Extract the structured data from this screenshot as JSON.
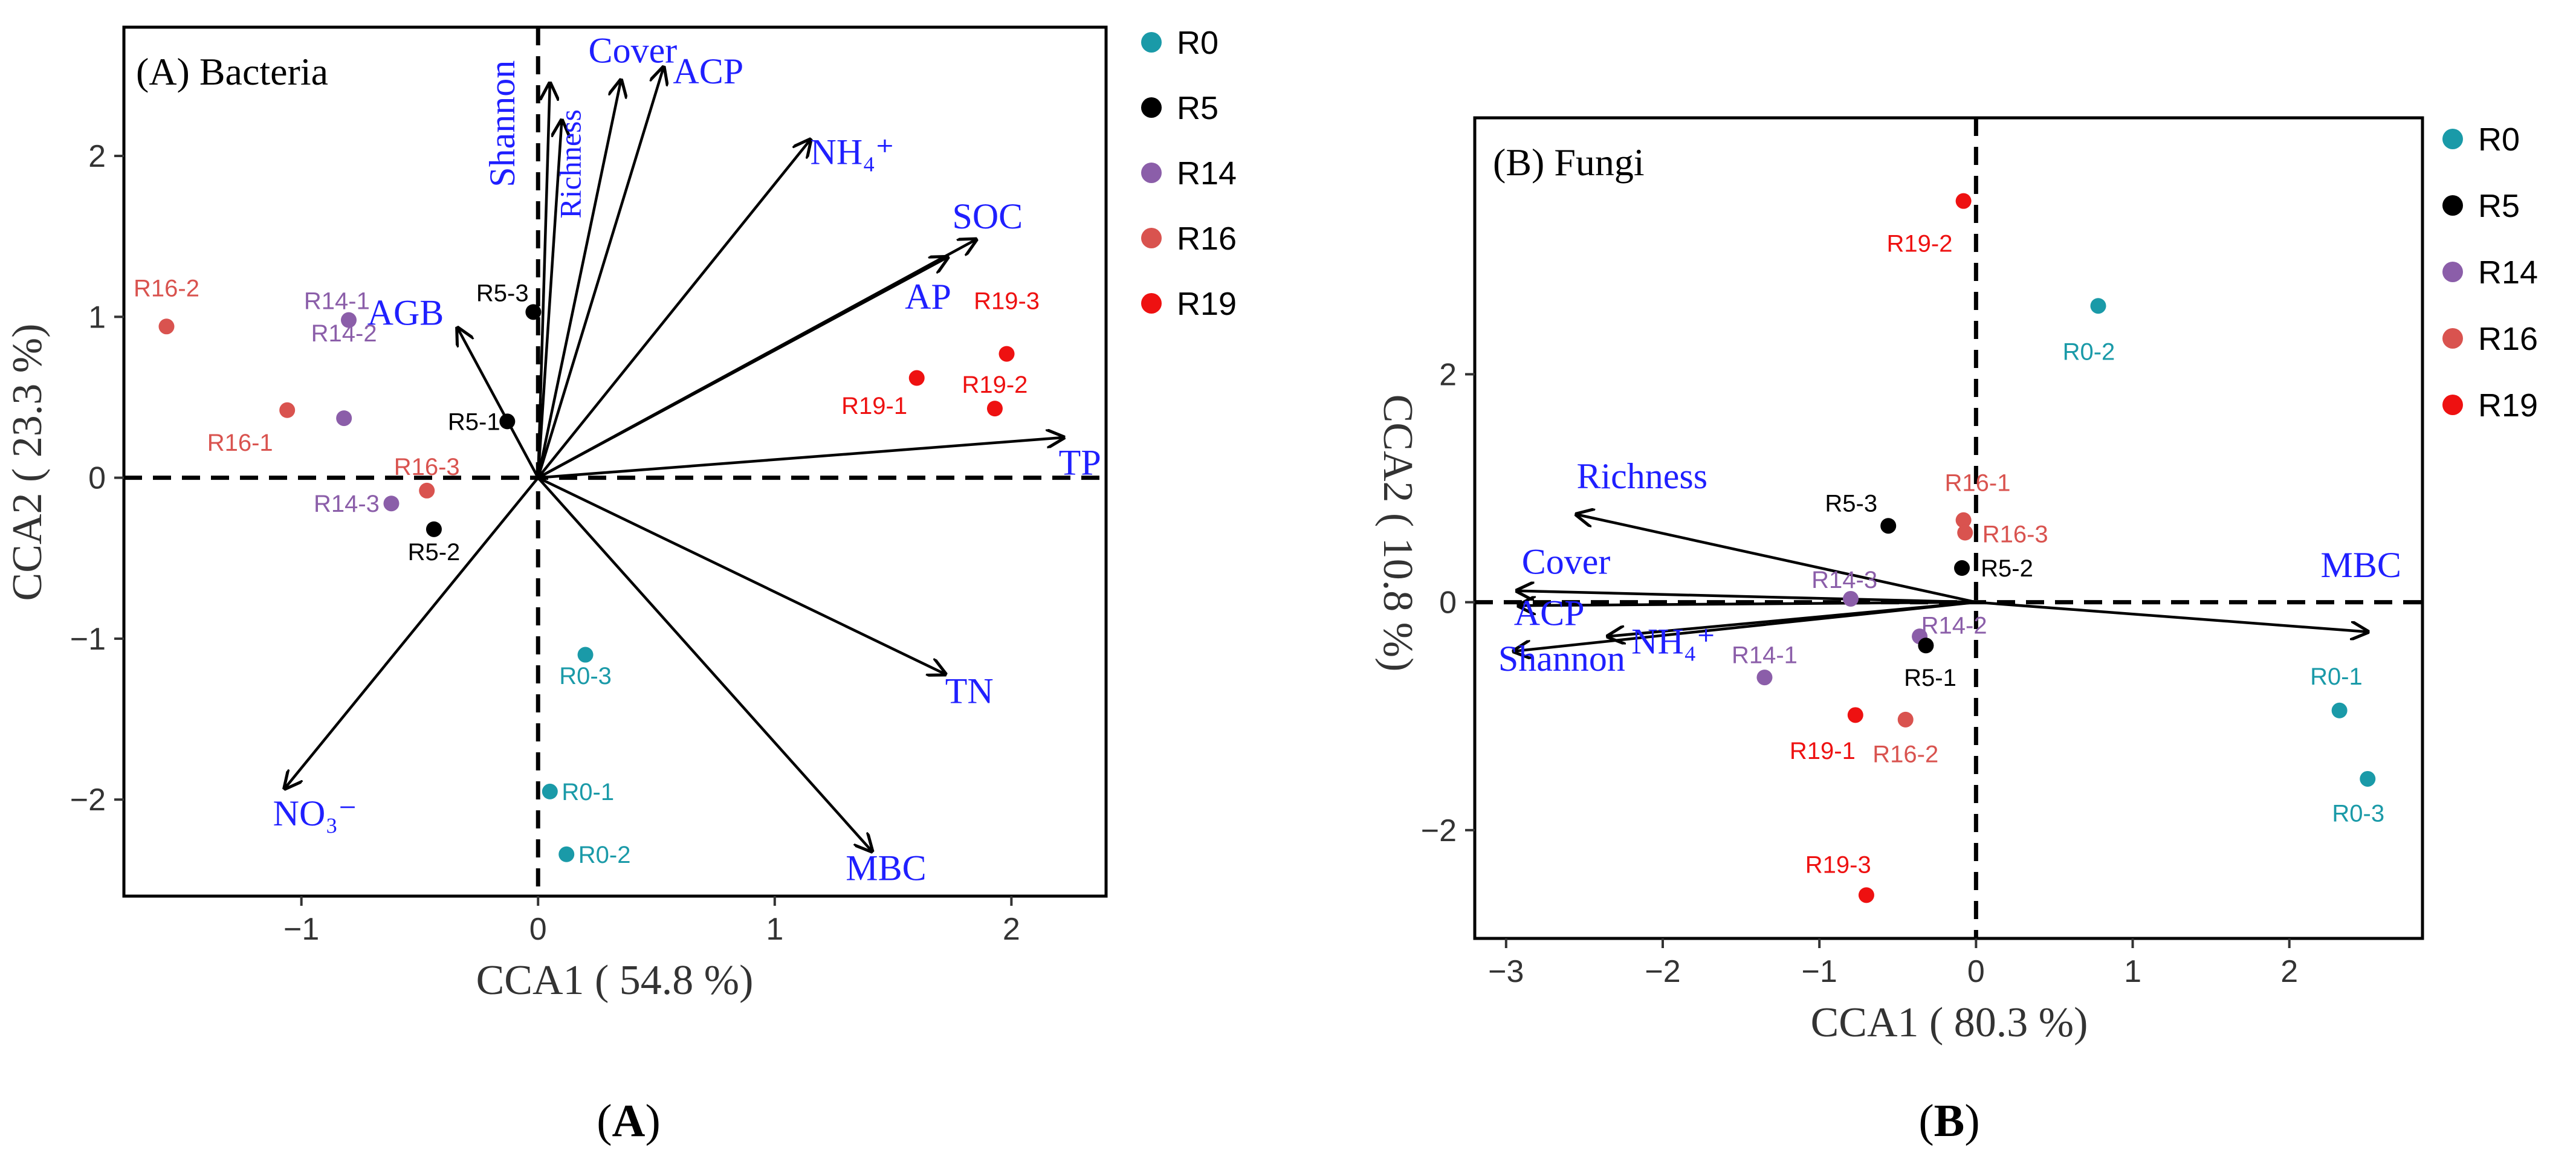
{
  "colors": {
    "arrow": "#000000",
    "var_label": "#1f1fff",
    "dashed": "#000000"
  },
  "chart_data": [
    {
      "type": "scatter",
      "title": "(A) Bacteria",
      "caption_bold": "A",
      "xlabel": "CCA1 ( 54.8 %)",
      "ylabel": "CCA2 ( 23.3 %)",
      "xlim": [
        -1.75,
        2.4
      ],
      "ylim": [
        -2.6,
        2.8
      ],
      "xticks": [
        {
          "value": -1,
          "label": "−1"
        },
        {
          "value": 0,
          "label": "0"
        },
        {
          "value": 1,
          "label": "1"
        },
        {
          "value": 2,
          "label": "2"
        }
      ],
      "yticks": [
        {
          "value": -2,
          "label": "−2"
        },
        {
          "value": -1,
          "label": "−1"
        },
        {
          "value": 0,
          "label": "0"
        },
        {
          "value": 1,
          "label": "1"
        },
        {
          "value": 2,
          "label": "2"
        }
      ],
      "legend": [
        {
          "group": "R0",
          "label": "R0",
          "color": "#1a9aa8"
        },
        {
          "group": "R5",
          "label": "R5",
          "color": "#000000"
        },
        {
          "group": "R14",
          "label": "R14",
          "color": "#8b5ea9"
        },
        {
          "group": "R16",
          "label": "R16",
          "color": "#d9534f"
        },
        {
          "group": "R19",
          "label": "R19",
          "color": "#ee1111"
        }
      ],
      "points": [
        {
          "label": "R16-2",
          "group": "R16",
          "x": -1.57,
          "y": 0.94,
          "lx": -1.57,
          "ly": 1.18,
          "anchor": "middle"
        },
        {
          "label": "R16-1",
          "group": "R16",
          "x": -1.06,
          "y": 0.42,
          "lx": -1.12,
          "ly": 0.22,
          "anchor": "end"
        },
        {
          "label": "R16-3",
          "group": "R16",
          "x": -0.47,
          "y": -0.08,
          "lx": -0.47,
          "ly": 0.07,
          "anchor": "middle"
        },
        {
          "label": "R14-1",
          "group": "R14",
          "x": -0.8,
          "y": 0.98,
          "lx": -0.85,
          "ly": 1.1,
          "anchor": "middle"
        },
        {
          "label": "R14-2",
          "group": "R14",
          "x": -0.82,
          "y": 0.37,
          "lx": -0.82,
          "ly": 0.9,
          "anchor": "middle"
        },
        {
          "label": "R14-3",
          "group": "R14",
          "x": -0.62,
          "y": -0.16,
          "lx": -0.67,
          "ly": -0.16,
          "anchor": "end"
        },
        {
          "label": "R5-3",
          "group": "R5",
          "x": -0.02,
          "y": 1.03,
          "lx": -0.04,
          "ly": 1.15,
          "anchor": "end"
        },
        {
          "label": "R5-1",
          "group": "R5",
          "x": -0.13,
          "y": 0.35,
          "lx": -0.16,
          "ly": 0.35,
          "anchor": "end"
        },
        {
          "label": "R5-2",
          "group": "R5",
          "x": -0.44,
          "y": -0.32,
          "lx": -0.44,
          "ly": -0.46,
          "anchor": "middle"
        },
        {
          "label": "R19-1",
          "group": "R19",
          "x": 1.6,
          "y": 0.62,
          "lx": 1.56,
          "ly": 0.45,
          "anchor": "end"
        },
        {
          "label": "R19-2",
          "group": "R19",
          "x": 1.93,
          "y": 0.43,
          "lx": 1.93,
          "ly": 0.58,
          "anchor": "middle"
        },
        {
          "label": "R19-3",
          "group": "R19",
          "x": 1.98,
          "y": 0.77,
          "lx": 1.98,
          "ly": 1.1,
          "anchor": "middle"
        },
        {
          "label": "R0-3",
          "group": "R0",
          "x": 0.2,
          "y": -1.1,
          "lx": 0.2,
          "ly": -1.23,
          "anchor": "middle"
        },
        {
          "label": "R0-1",
          "group": "R0",
          "x": 0.05,
          "y": -1.95,
          "lx": 0.1,
          "ly": -1.95,
          "anchor": "start"
        },
        {
          "label": "R0-2",
          "group": "R0",
          "x": 0.12,
          "y": -2.34,
          "lx": 0.17,
          "ly": -2.34,
          "anchor": "start"
        }
      ],
      "arrows": [
        {
          "label": "Shannon",
          "x": 0.05,
          "y": 2.45,
          "lx": -0.1,
          "ly": 2.2,
          "rotate": true
        },
        {
          "label": "Richness",
          "x": 0.1,
          "y": 2.22,
          "lx": 0.18,
          "ly": 1.95,
          "rotate": true,
          "small": true
        },
        {
          "label": "Cover",
          "x": 0.35,
          "y": 2.47,
          "lx": 0.4,
          "ly": 2.58,
          "anchor": "middle"
        },
        {
          "label": "ACP",
          "x": 0.53,
          "y": 2.55,
          "lx": 0.57,
          "ly": 2.45,
          "anchor": "start"
        },
        {
          "label": "NH₄⁺",
          "x": 1.15,
          "y": 2.1,
          "lx": 1.15,
          "ly": 1.95,
          "anchor": "start"
        },
        {
          "label": "SOC",
          "x": 1.85,
          "y": 1.48,
          "lx": 1.75,
          "ly": 1.55,
          "anchor": "start"
        },
        {
          "label": "AP",
          "x": 1.73,
          "y": 1.37,
          "lx": 1.55,
          "ly": 1.05,
          "anchor": "start"
        },
        {
          "label": "TP",
          "x": 2.22,
          "y": 0.25,
          "lx": 2.2,
          "ly": 0.02,
          "anchor": "start"
        },
        {
          "label": "TN",
          "x": 1.72,
          "y": -1.22,
          "lx": 1.72,
          "ly": -1.4,
          "anchor": "start"
        },
        {
          "label": "MBC",
          "x": 1.41,
          "y": -2.32,
          "lx": 1.3,
          "ly": -2.5,
          "anchor": "start"
        },
        {
          "label": "NO₃⁻",
          "x": -1.07,
          "y": -1.93,
          "lx": -1.12,
          "ly": -2.16,
          "anchor": "start"
        },
        {
          "label": "AGB",
          "x": -0.34,
          "y": 0.93,
          "lx": -0.56,
          "ly": 0.95,
          "anchor": "middle"
        }
      ]
    },
    {
      "type": "scatter",
      "title": "(B) Fungi",
      "caption_bold": "B",
      "xlabel": "CCA1 ( 80.3 %)",
      "ylabel": "CCA2 ( 10.8 %)",
      "xlim": [
        -3.2,
        2.85
      ],
      "ylim": [
        -2.95,
        4.25
      ],
      "xticks": [
        {
          "value": -3,
          "label": "−3"
        },
        {
          "value": -2,
          "label": "−2"
        },
        {
          "value": -1,
          "label": "−1"
        },
        {
          "value": 0,
          "label": "0"
        },
        {
          "value": 1,
          "label": "1"
        },
        {
          "value": 2,
          "label": "2"
        }
      ],
      "yticks": [
        {
          "value": -2,
          "label": "−2"
        },
        {
          "value": 0,
          "label": "0"
        },
        {
          "value": 2,
          "label": "2"
        }
      ],
      "legend": [
        {
          "group": "R0",
          "label": "R0",
          "color": "#1a9aa8"
        },
        {
          "group": "R5",
          "label": "R5",
          "color": "#000000"
        },
        {
          "group": "R14",
          "label": "R14",
          "color": "#8b5ea9"
        },
        {
          "group": "R16",
          "label": "R16",
          "color": "#d9534f"
        },
        {
          "group": "R19",
          "label": "R19",
          "color": "#ee1111"
        }
      ],
      "points": [
        {
          "label": "R19-2",
          "group": "R19",
          "x": -0.08,
          "y": 3.52,
          "lx": -0.15,
          "ly": 3.15,
          "anchor": "end"
        },
        {
          "label": "R0-2",
          "group": "R0",
          "x": 0.78,
          "y": 2.6,
          "lx": 0.72,
          "ly": 2.2,
          "anchor": "middle"
        },
        {
          "label": "R5-3",
          "group": "R5",
          "x": -0.56,
          "y": 0.67,
          "lx": -0.63,
          "ly": 0.87,
          "anchor": "end"
        },
        {
          "label": "R16-1",
          "group": "R16",
          "x": -0.08,
          "y": 0.72,
          "lx": -0.2,
          "ly": 1.05,
          "anchor": "start"
        },
        {
          "label": "R16-3",
          "group": "R16",
          "x": -0.07,
          "y": 0.61,
          "lx": 0.04,
          "ly": 0.6,
          "anchor": "start"
        },
        {
          "label": "R5-2",
          "group": "R5",
          "x": -0.09,
          "y": 0.3,
          "lx": 0.03,
          "ly": 0.3,
          "anchor": "start"
        },
        {
          "label": "R14-3",
          "group": "R14",
          "x": -0.8,
          "y": 0.03,
          "lx": -0.84,
          "ly": 0.2,
          "anchor": "middle"
        },
        {
          "label": "R14-2",
          "group": "R14",
          "x": -0.36,
          "y": -0.3,
          "lx": -0.35,
          "ly": -0.2,
          "anchor": "start"
        },
        {
          "label": "R5-1",
          "group": "R5",
          "x": -0.32,
          "y": -0.38,
          "lx": -0.46,
          "ly": -0.66,
          "anchor": "start"
        },
        {
          "label": "R14-1",
          "group": "R14",
          "x": -1.35,
          "y": -0.66,
          "lx": -1.35,
          "ly": -0.46,
          "anchor": "middle"
        },
        {
          "label": "R19-1",
          "group": "R19",
          "x": -0.77,
          "y": -0.99,
          "lx": -0.98,
          "ly": -1.3,
          "anchor": "middle"
        },
        {
          "label": "R16-2",
          "group": "R16",
          "x": -0.45,
          "y": -1.03,
          "lx": -0.45,
          "ly": -1.33,
          "anchor": "middle"
        },
        {
          "label": "R19-3",
          "group": "R19",
          "x": -0.7,
          "y": -2.57,
          "lx": -0.88,
          "ly": -2.3,
          "anchor": "middle"
        },
        {
          "label": "R0-1",
          "group": "R0",
          "x": 2.32,
          "y": -0.95,
          "lx": 2.3,
          "ly": -0.65,
          "anchor": "middle"
        },
        {
          "label": "R0-3",
          "group": "R0",
          "x": 2.5,
          "y": -1.55,
          "lx": 2.44,
          "ly": -1.85,
          "anchor": "middle"
        }
      ],
      "arrows": [
        {
          "label": "Richness",
          "x": -2.55,
          "y": 0.77,
          "lx": -2.55,
          "ly": 1.0,
          "anchor": "start"
        },
        {
          "label": "Cover",
          "x": -2.93,
          "y": 0.1,
          "lx": -2.9,
          "ly": 0.25,
          "anchor": "start"
        },
        {
          "label": "ACP",
          "x": -2.92,
          "y": -0.03,
          "lx": -2.95,
          "ly": -0.2,
          "anchor": "start"
        },
        {
          "label": "Shannon",
          "x": -2.95,
          "y": -0.43,
          "lx": -3.05,
          "ly": -0.6,
          "anchor": "start"
        },
        {
          "label": "NH₄⁺",
          "x": -2.35,
          "y": -0.3,
          "lx": -2.2,
          "ly": -0.45,
          "anchor": "start"
        },
        {
          "label": "MBC",
          "x": 2.5,
          "y": -0.26,
          "lx": 2.2,
          "ly": 0.22,
          "anchor": "start"
        }
      ]
    }
  ]
}
